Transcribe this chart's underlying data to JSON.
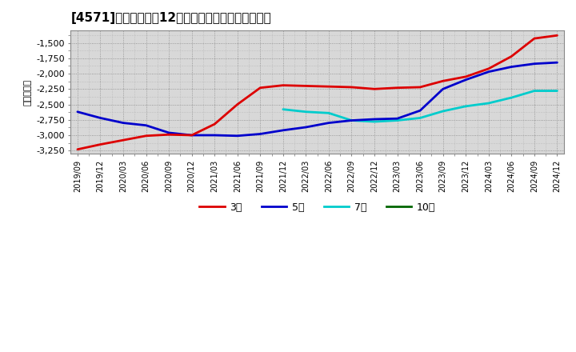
{
  "title": "[4571]　当期純利益12か月移動合計の平均値の推移",
  "ylabel": "（百万円）",
  "background_color": "#ffffff",
  "plot_bg_color": "#e8e8e8",
  "grid_color": "#aaaaaa",
  "ylim": [
    -3300,
    -1300
  ],
  "yticks": [
    -3250,
    -3000,
    -2750,
    -2500,
    -2250,
    -2000,
    -1750,
    -1500
  ],
  "series": {
    "3year": {
      "color": "#dd0000",
      "label": "3年",
      "data_x": [
        "2019/09",
        "2019/12",
        "2020/03",
        "2020/06",
        "2020/09",
        "2020/12",
        "2021/03",
        "2021/06",
        "2021/09",
        "2021/12",
        "2022/03",
        "2022/06",
        "2022/09",
        "2022/12",
        "2023/03",
        "2023/06",
        "2023/09",
        "2023/12",
        "2024/03",
        "2024/06",
        "2024/09",
        "2024/12"
      ],
      "data_y": [
        -3230,
        -3150,
        -3080,
        -3010,
        -2990,
        -3000,
        -2820,
        -2500,
        -2230,
        -2190,
        -2200,
        -2210,
        -2220,
        -2250,
        -2230,
        -2220,
        -2120,
        -2050,
        -1920,
        -1720,
        -1430,
        -1380
      ]
    },
    "5year": {
      "color": "#0000cc",
      "label": "5年",
      "data_x": [
        "2019/09",
        "2019/12",
        "2020/03",
        "2020/06",
        "2020/09",
        "2020/12",
        "2021/03",
        "2021/06",
        "2021/09",
        "2021/12",
        "2022/03",
        "2022/06",
        "2022/09",
        "2022/12",
        "2023/03",
        "2023/06",
        "2023/09",
        "2023/12",
        "2024/03",
        "2024/06",
        "2024/09",
        "2024/12"
      ],
      "data_y": [
        -2620,
        -2720,
        -2800,
        -2840,
        -2960,
        -3000,
        -3000,
        -3010,
        -2980,
        -2920,
        -2870,
        -2800,
        -2760,
        -2740,
        -2730,
        -2600,
        -2250,
        -2100,
        -1970,
        -1890,
        -1840,
        -1820
      ]
    },
    "7year": {
      "color": "#00cccc",
      "label": "7年",
      "data_x": [
        "2021/12",
        "2022/03",
        "2022/06",
        "2022/09",
        "2022/12",
        "2023/03",
        "2023/06",
        "2023/09",
        "2023/12",
        "2024/03",
        "2024/06",
        "2024/09",
        "2024/12"
      ],
      "data_y": [
        -2580,
        -2620,
        -2640,
        -2760,
        -2780,
        -2760,
        -2720,
        -2610,
        -2530,
        -2480,
        -2390,
        -2280,
        -2280
      ]
    },
    "10year": {
      "color": "#006600",
      "label": "10年",
      "data_x": [],
      "data_y": []
    }
  },
  "xtick_labels": [
    "2019/09",
    "2019/12",
    "2020/03",
    "2020/06",
    "2020/09",
    "2020/12",
    "2021/03",
    "2021/06",
    "2021/09",
    "2021/12",
    "2022/03",
    "2022/06",
    "2022/09",
    "2022/12",
    "2023/03",
    "2023/06",
    "2023/09",
    "2023/12",
    "2024/03",
    "2024/06",
    "2024/09",
    "2024/12"
  ]
}
